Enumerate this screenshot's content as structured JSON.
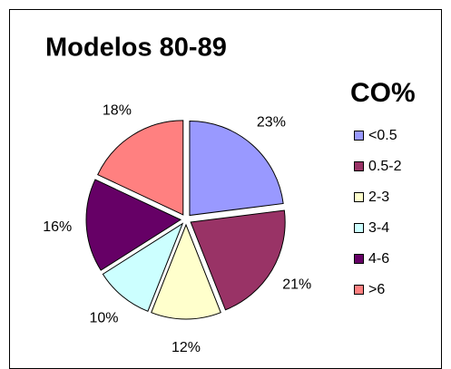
{
  "chart_data": {
    "type": "pie",
    "title": "Modelos 80-89",
    "legend_title": "CO%",
    "categories": [
      "<0.5",
      "0.5-2",
      "2-3",
      "3-4",
      "4-6",
      ">6"
    ],
    "values": [
      23,
      21,
      12,
      10,
      16,
      18
    ],
    "value_labels": [
      "23%",
      "21%",
      "12%",
      "10%",
      "16%",
      "18%"
    ],
    "colors": [
      "#9999ff",
      "#993366",
      "#ffffcc",
      "#ccffff",
      "#660066",
      "#ff8080"
    ],
    "legend": "right"
  }
}
